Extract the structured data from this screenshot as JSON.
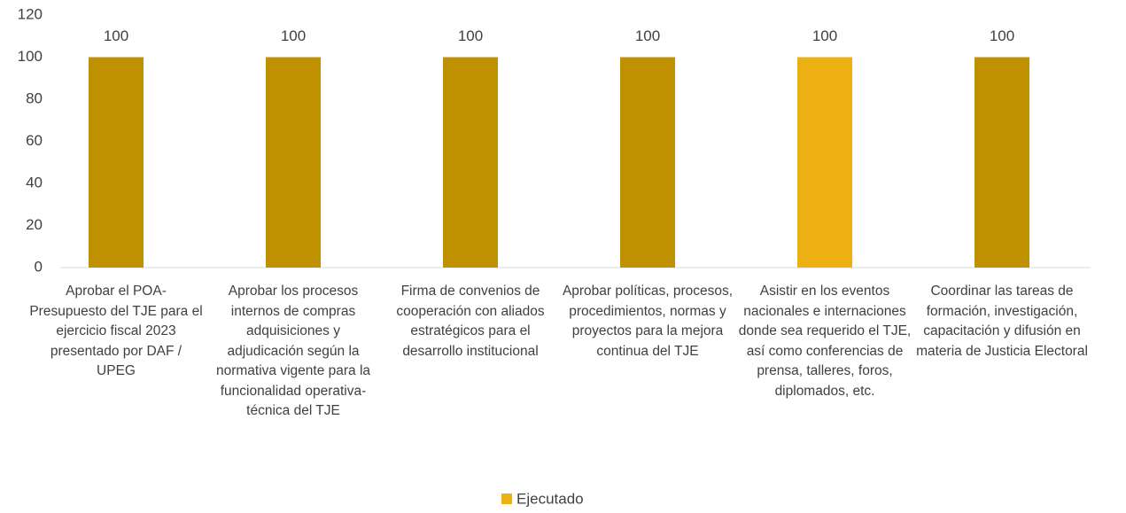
{
  "chart_data": {
    "type": "bar",
    "categories": [
      "Aprobar el POA-Presupuesto del TJE para el ejercicio fiscal 2023 presentado por DAF / UPEG",
      "Aprobar los procesos internos de compras adquisiciones y adjudicación según la normativa vigente para la funcionalidad operativa- técnica del TJE",
      "Firma de convenios de cooperación con aliados estratégicos para el desarrollo institucional",
      "Aprobar políticas, procesos, procedimientos, normas y proyectos para la mejora continua del TJE",
      "Asistir en los eventos nacionales e internaciones donde sea requerido el TJE, así como conferencias de prensa, talleres, foros, diplomados, etc.",
      "Coordinar las tareas de formación, investigación, capacitación y difusión en materia de Justicia Electoral"
    ],
    "series": [
      {
        "name": "Ejecutado",
        "color": "#EDB012",
        "bar_colors": [
          "#BF9000",
          "#BF9000",
          "#BF9000",
          "#BF9000",
          "#EDB012",
          "#BF9000"
        ],
        "values": [
          100,
          100,
          100,
          100,
          100,
          100
        ]
      }
    ],
    "ylim": [
      0,
      120
    ],
    "yticks": [
      0,
      20,
      40,
      60,
      80,
      100,
      120
    ],
    "grid": false,
    "legend": "bottom"
  }
}
